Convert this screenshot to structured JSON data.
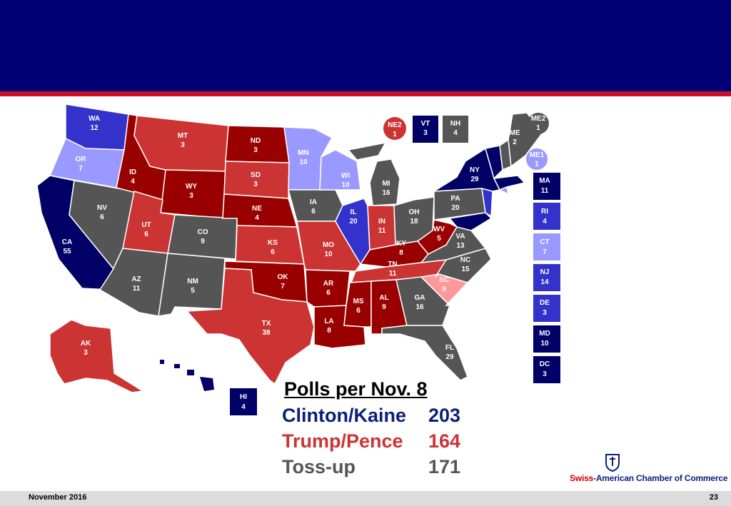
{
  "colors": {
    "header": "#000074",
    "stripe": "#c8102e",
    "solid_dem": "#000066",
    "likely_dem": "#3333cc",
    "lean_dem": "#9999ff",
    "tossup": "#555555",
    "lean_rep": "#ff9999",
    "likely_rep": "#cc3333",
    "solid_rep": "#990000"
  },
  "states": {
    "WA": {
      "abbr": "WA",
      "ev": "12"
    },
    "OR": {
      "abbr": "OR",
      "ev": "7"
    },
    "CA": {
      "abbr": "CA",
      "ev": "55"
    },
    "NV": {
      "abbr": "NV",
      "ev": "6"
    },
    "ID": {
      "abbr": "ID",
      "ev": "4"
    },
    "MT": {
      "abbr": "MT",
      "ev": "3"
    },
    "WY": {
      "abbr": "WY",
      "ev": "3"
    },
    "UT": {
      "abbr": "UT",
      "ev": "6"
    },
    "CO": {
      "abbr": "CO",
      "ev": "9"
    },
    "AZ": {
      "abbr": "AZ",
      "ev": "11"
    },
    "NM": {
      "abbr": "NM",
      "ev": "5"
    },
    "ND": {
      "abbr": "ND",
      "ev": "3"
    },
    "SD": {
      "abbr": "SD",
      "ev": "3"
    },
    "NE": {
      "abbr": "NE",
      "ev": "4"
    },
    "KS": {
      "abbr": "KS",
      "ev": "6"
    },
    "OK": {
      "abbr": "OK",
      "ev": "7"
    },
    "TX": {
      "abbr": "TX",
      "ev": "38"
    },
    "MN": {
      "abbr": "MN",
      "ev": "10"
    },
    "IA": {
      "abbr": "IA",
      "ev": "6"
    },
    "MO": {
      "abbr": "MO",
      "ev": "10"
    },
    "AR": {
      "abbr": "AR",
      "ev": "6"
    },
    "LA": {
      "abbr": "LA",
      "ev": "8"
    },
    "WI": {
      "abbr": "WI",
      "ev": "10"
    },
    "IL": {
      "abbr": "IL",
      "ev": "20"
    },
    "MI": {
      "abbr": "MI",
      "ev": "16"
    },
    "IN": {
      "abbr": "IN",
      "ev": "11"
    },
    "OH": {
      "abbr": "OH",
      "ev": "18"
    },
    "KY": {
      "abbr": "KY",
      "ev": "8"
    },
    "TN": {
      "abbr": "TN",
      "ev": "11"
    },
    "MS": {
      "abbr": "MS",
      "ev": "6"
    },
    "AL": {
      "abbr": "AL",
      "ev": "9"
    },
    "GA": {
      "abbr": "GA",
      "ev": "16"
    },
    "FL": {
      "abbr": "FL",
      "ev": "29"
    },
    "SC": {
      "abbr": "SC",
      "ev": "9"
    },
    "NC": {
      "abbr": "NC",
      "ev": "15"
    },
    "VA": {
      "abbr": "VA",
      "ev": "13"
    },
    "WV": {
      "abbr": "WV",
      "ev": "5"
    },
    "PA": {
      "abbr": "PA",
      "ev": "20"
    },
    "NY": {
      "abbr": "NY",
      "ev": "29"
    },
    "ME": {
      "abbr": "ME",
      "ev": "2"
    },
    "AK": {
      "abbr": "AK",
      "ev": "3"
    },
    "HI": {
      "abbr": "HI",
      "ev": "4"
    }
  },
  "boxes": {
    "NE2": {
      "abbr": "NE2",
      "ev": "1"
    },
    "VT": {
      "abbr": "VT",
      "ev": "3"
    },
    "NH": {
      "abbr": "NH",
      "ev": "4"
    },
    "ME2": {
      "abbr": "ME2",
      "ev": "1"
    },
    "ME1": {
      "abbr": "ME1",
      "ev": "1"
    },
    "MA": {
      "abbr": "MA",
      "ev": "11"
    },
    "RI": {
      "abbr": "RI",
      "ev": "4"
    },
    "CT": {
      "abbr": "CT",
      "ev": "7"
    },
    "NJ": {
      "abbr": "NJ",
      "ev": "14"
    },
    "DE": {
      "abbr": "DE",
      "ev": "3"
    },
    "MD": {
      "abbr": "MD",
      "ev": "10"
    },
    "DC": {
      "abbr": "DC",
      "ev": "3"
    }
  },
  "summary": {
    "title": "Polls per Nov. 8",
    "clinton_label": "Clinton/Kaine",
    "clinton_ev": "203",
    "trump_label": "Trump/Pence",
    "trump_ev": "164",
    "tossup_label": "Toss-up",
    "tossup_ev": "171"
  },
  "logo": {
    "swiss": "Swiss",
    "rest": "-American Chamber of Commerce"
  },
  "footer": {
    "date": "November 2016",
    "page": "23"
  }
}
